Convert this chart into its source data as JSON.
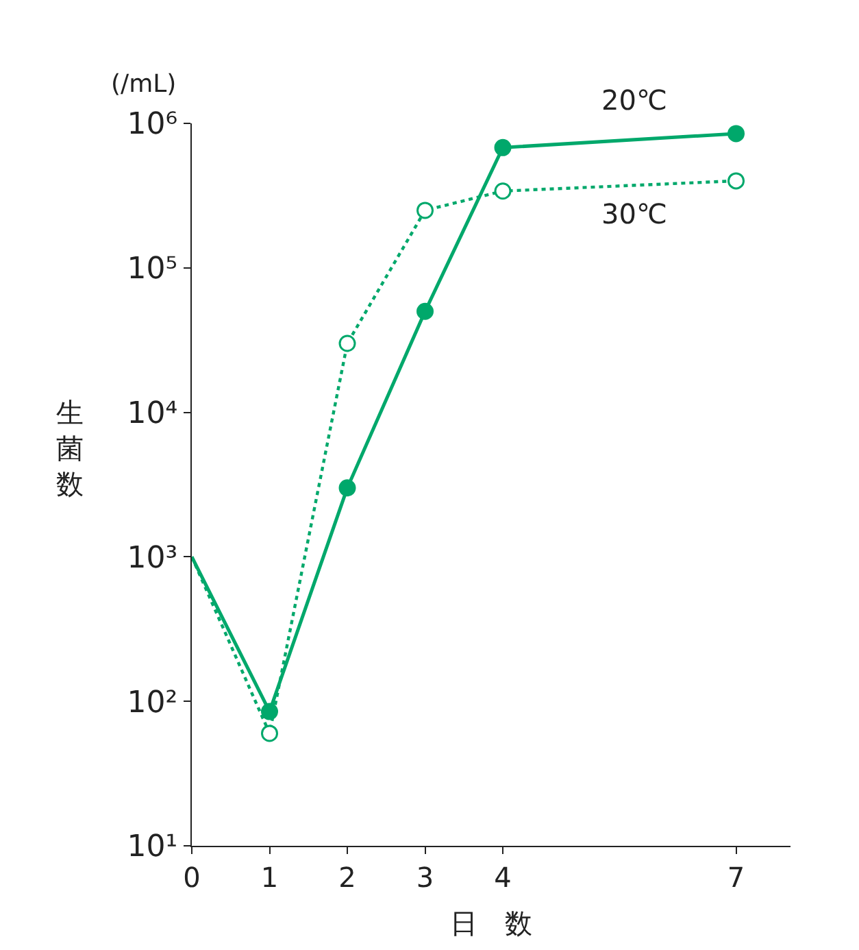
{
  "chart_data": {
    "type": "line",
    "xlabel": "日　数",
    "ylabel": "生菌数",
    "annotations": [
      "(/mL)"
    ],
    "x": [
      0,
      1,
      2,
      3,
      4,
      7
    ],
    "series": [
      {
        "name": "20℃",
        "color": "#00a86b",
        "values": [
          1000,
          85,
          3000,
          50000,
          680000,
          850000
        ],
        "line_style": "solid",
        "marker": "circle"
      },
      {
        "name": "30℃",
        "color": "#00a86b",
        "values": [
          1000,
          60,
          30000,
          250000,
          340000,
          400000
        ],
        "line_style": "dotted",
        "marker": "circle"
      }
    ],
    "log": "y",
    "xlim": [
      0,
      7.7
    ],
    "xticks": [
      0,
      1,
      2,
      3,
      4,
      7
    ],
    "ylim": [
      10,
      1000000
    ],
    "yticks": [
      {
        "value": 10,
        "label": "10¹"
      },
      {
        "value": 100,
        "label": "10²"
      },
      {
        "value": 1000,
        "label": "10³"
      },
      {
        "value": 10000,
        "label": "10⁴"
      },
      {
        "value": 100000,
        "label": "10⁵"
      },
      {
        "value": 1000000,
        "label": "10⁶"
      }
    ],
    "legend": false
  }
}
